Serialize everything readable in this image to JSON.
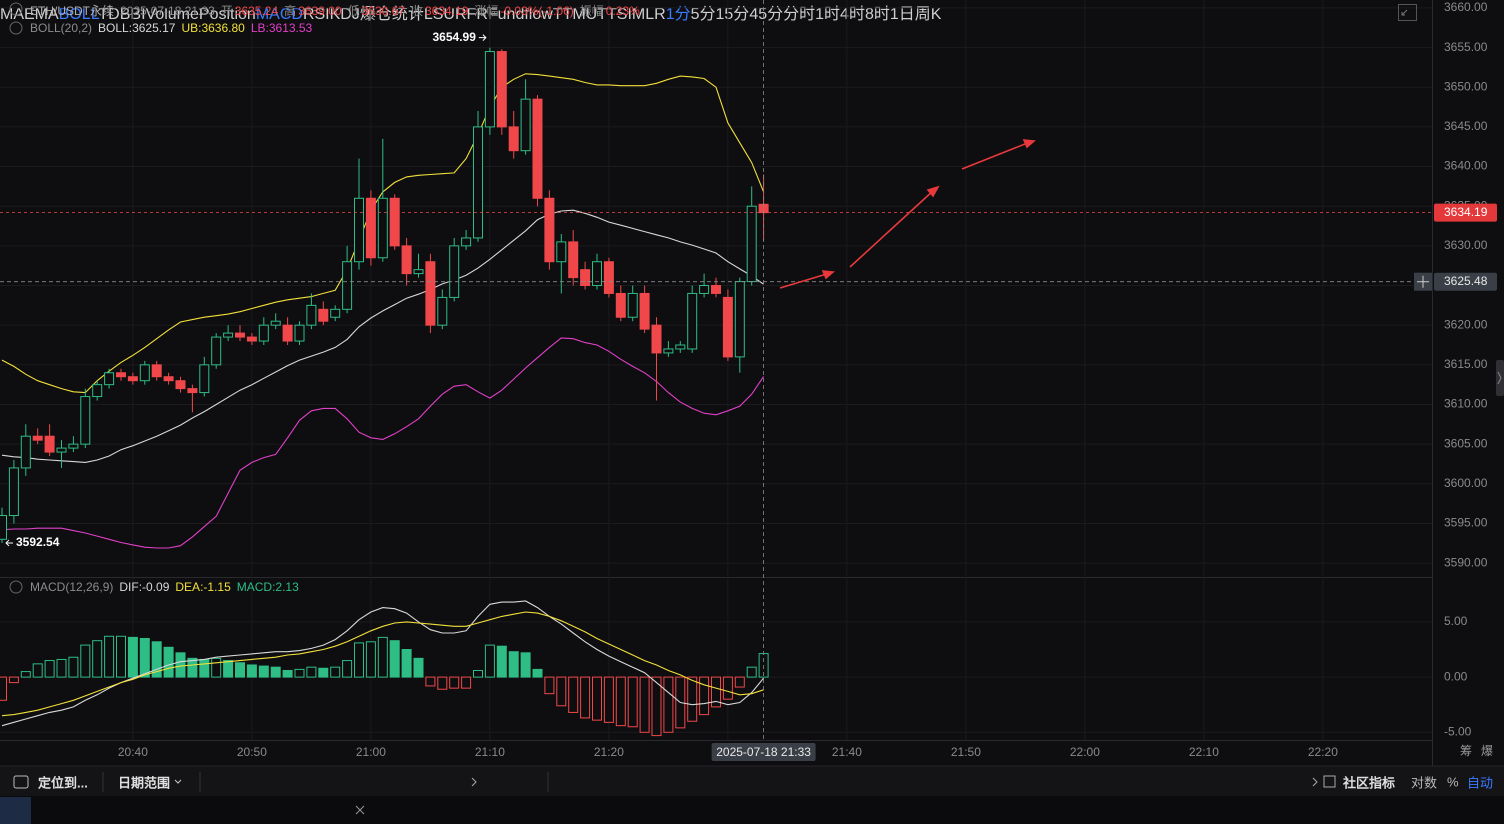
{
  "header": {
    "symbol": "ETH/USDT永续",
    "time": "2025-07-18 21:33",
    "items": [
      {
        "label": "开",
        "value": "3635.24"
      },
      {
        "label": "高",
        "value": "3639.00"
      },
      {
        "label": "低",
        "value": "3630.67"
      },
      {
        "label": "收",
        "value": "3634.19"
      },
      {
        "label": "涨幅",
        "value": "-0.03%(-1.06)"
      },
      {
        "label": "振幅",
        "value": "0.23%"
      }
    ]
  },
  "chart_data": [
    {
      "type": "candlestick",
      "indicator": "BOLL(20,2)",
      "legend": [
        "BOLL:3625.17",
        "UB:3636.80",
        "LB:3613.53"
      ],
      "x": [
        "20:29",
        "20:30",
        "20:31",
        "20:32",
        "20:33",
        "20:34",
        "20:35",
        "20:36",
        "20:37",
        "20:38",
        "20:39",
        "20:40",
        "20:41",
        "20:42",
        "20:43",
        "20:44",
        "20:45",
        "20:46",
        "20:47",
        "20:48",
        "20:49",
        "20:50",
        "20:51",
        "20:52",
        "20:53",
        "20:54",
        "20:55",
        "20:56",
        "20:57",
        "20:58",
        "20:59",
        "21:00",
        "21:01",
        "21:02",
        "21:03",
        "21:04",
        "21:05",
        "21:06",
        "21:07",
        "21:08",
        "21:09",
        "21:10",
        "21:11",
        "21:12",
        "21:13",
        "21:14",
        "21:15",
        "21:16",
        "21:17",
        "21:18",
        "21:19",
        "21:20",
        "21:21",
        "21:22",
        "21:23",
        "21:24",
        "21:25",
        "21:26",
        "21:27",
        "21:28",
        "21:29",
        "21:30",
        "21:31",
        "21:32",
        "21:33"
      ],
      "open": [
        3593,
        3596,
        3602,
        3606,
        3606,
        3604,
        3604.5,
        3605,
        3611,
        3612.5,
        3614,
        3613.5,
        3613,
        3615,
        3613.5,
        3613,
        3612,
        3611.5,
        3615,
        3618.5,
        3619,
        3618.5,
        3618,
        3620,
        3620,
        3618,
        3620,
        3622,
        3621,
        3622,
        3628,
        3636,
        3628.5,
        3636,
        3630,
        3626.5,
        3628,
        3620,
        3623.5,
        3630,
        3631,
        3645,
        3654.5,
        3645,
        3642,
        3648.5,
        3636,
        3628,
        3630.5,
        3627,
        3625,
        3628,
        3624,
        3621,
        3624,
        3620,
        3616.5,
        3617,
        3617,
        3624,
        3625,
        3623.5,
        3616,
        3625.5,
        3635.24
      ],
      "high": [
        3597,
        3603,
        3607.5,
        3607,
        3607.5,
        3605.5,
        3606,
        3612,
        3613,
        3614.5,
        3614.5,
        3614,
        3615.5,
        3615.5,
        3614,
        3613.5,
        3612.5,
        3616,
        3619,
        3620,
        3620,
        3619,
        3621,
        3621.5,
        3621,
        3620.5,
        3624,
        3623,
        3622.5,
        3630,
        3641,
        3637,
        3643.5,
        3636.5,
        3631,
        3629,
        3629,
        3624.5,
        3631,
        3632,
        3647,
        3654.99,
        3654.8,
        3647,
        3651,
        3649,
        3637,
        3631.5,
        3632,
        3628,
        3629,
        3628.5,
        3625,
        3625,
        3625,
        3621,
        3618,
        3618,
        3625,
        3626.5,
        3626,
        3624.5,
        3626,
        3637.5,
        3639
      ],
      "low": [
        3592.54,
        3595,
        3601,
        3605,
        3603.5,
        3602,
        3604,
        3604.5,
        3610.5,
        3612,
        3613,
        3612.5,
        3612.5,
        3613,
        3612.5,
        3611.5,
        3609,
        3611,
        3614.5,
        3618,
        3618,
        3617.5,
        3617.5,
        3619.5,
        3617.5,
        3617.5,
        3619.5,
        3620,
        3620.5,
        3621.5,
        3627,
        3627.5,
        3628,
        3629.5,
        3625,
        3626,
        3619,
        3619.5,
        3623,
        3629.5,
        3630.5,
        3644,
        3644,
        3641,
        3641.5,
        3635,
        3627,
        3624,
        3625,
        3624.5,
        3624.5,
        3623.5,
        3620.5,
        3620.5,
        3619,
        3610.5,
        3616,
        3616.5,
        3616.5,
        3623.5,
        3623.5,
        3615.5,
        3614,
        3625,
        3630.67
      ],
      "close": [
        3596,
        3602,
        3606,
        3605.5,
        3604,
        3604.5,
        3605,
        3611,
        3612.5,
        3614,
        3613.5,
        3613,
        3615,
        3613.5,
        3613,
        3612,
        3611.5,
        3615,
        3618.5,
        3619,
        3618.5,
        3618,
        3620,
        3620.5,
        3618,
        3620,
        3622.5,
        3620.5,
        3622,
        3628,
        3636,
        3628.5,
        3636,
        3630,
        3626.5,
        3627,
        3620,
        3623.5,
        3630,
        3631,
        3645,
        3654.5,
        3645,
        3642,
        3648.5,
        3636,
        3628,
        3630.5,
        3626,
        3625,
        3628,
        3624,
        3621,
        3624,
        3619.5,
        3616.5,
        3617,
        3617.5,
        3624,
        3625,
        3624,
        3616,
        3625.5,
        3635,
        3634.19
      ],
      "up_color": "#2ebd85",
      "down_color": "#f0484a",
      "series": [
        {
          "color": "#d8d8d8",
          "values": [
            3603.6,
            3603.4,
            3603.3,
            3603.1,
            3603,
            3602.9,
            3602.8,
            3602.7,
            3603,
            3603.5,
            3604.3,
            3604.8,
            3605.4,
            3606,
            3606.7,
            3607.4,
            3608.3,
            3609.1,
            3610,
            3610.9,
            3611.8,
            3612.5,
            3613.3,
            3614.1,
            3614.9,
            3615.6,
            3616.1,
            3616.6,
            3617.2,
            3618.2,
            3619.8,
            3620.9,
            3621.8,
            3622.6,
            3623.4,
            3623.9,
            3624.5,
            3625.2,
            3625.7,
            3626.3,
            3627.2,
            3628.3,
            3629.5,
            3630.7,
            3631.9,
            3633.3,
            3634,
            3634.4,
            3634.5,
            3634.1,
            3633.6,
            3633,
            3632.6,
            3632.2,
            3631.8,
            3631.4,
            3631,
            3630.5,
            3630.1,
            3629.6,
            3629.1,
            3628,
            3627.1,
            3626.2,
            3625.17
          ]
        },
        {
          "color": "#f2e03a",
          "values": [
            3615.6,
            3614.8,
            3613.8,
            3613,
            3612.5,
            3612,
            3611.6,
            3611.5,
            3613,
            3614.2,
            3615.3,
            3616.2,
            3617.2,
            3618.3,
            3619.4,
            3620.4,
            3620.7,
            3621,
            3621.2,
            3621.4,
            3621.7,
            3622.1,
            3622.5,
            3622.9,
            3623.2,
            3623.4,
            3623.6,
            3624,
            3624.4,
            3627,
            3630.7,
            3634.5,
            3636.8,
            3638,
            3638.7,
            3638.9,
            3639,
            3639.1,
            3639.2,
            3641,
            3644,
            3647.5,
            3650,
            3651,
            3651.7,
            3651.6,
            3651.4,
            3651.2,
            3651,
            3650.6,
            3650.3,
            3650.3,
            3650.2,
            3650.2,
            3650.2,
            3650.5,
            3651,
            3651.4,
            3651.3,
            3651.1,
            3650,
            3645.5,
            3643,
            3640.5,
            3636.8
          ]
        },
        {
          "color": "#e040c8",
          "values": [
            3594.2,
            3594.3,
            3594.3,
            3594.4,
            3594.4,
            3594.4,
            3594.1,
            3593.8,
            3593.4,
            3593,
            3592.6,
            3592.3,
            3592,
            3591.9,
            3591.9,
            3592.2,
            3593.3,
            3594.6,
            3595.9,
            3598.8,
            3601.7,
            3602.7,
            3603.3,
            3603.7,
            3605.8,
            3608,
            3609.2,
            3609.5,
            3609.5,
            3608.2,
            3606.5,
            3605.8,
            3605.6,
            3606.3,
            3607.2,
            3608.2,
            3609.8,
            3611.3,
            3612.3,
            3612.5,
            3611.6,
            3610.8,
            3611.8,
            3613.2,
            3614.6,
            3615.9,
            3617.2,
            3618.4,
            3618.3,
            3617.8,
            3617.5,
            3616.7,
            3615.7,
            3614.8,
            3614,
            3612.9,
            3611.5,
            3610.3,
            3609.5,
            3608.9,
            3608.7,
            3609.2,
            3609.8,
            3611.3,
            3613.53
          ]
        }
      ],
      "xlim": [
        "20:29",
        "22:29"
      ],
      "ylim": [
        3588.5,
        3661
      ],
      "yticks": [
        {
          "value": 3590,
          "label": "3590.00"
        },
        {
          "value": 3595,
          "label": "3595.00"
        },
        {
          "value": 3600,
          "label": "3600.00"
        },
        {
          "value": 3605,
          "label": "3605.00"
        },
        {
          "value": 3610,
          "label": "3610.00"
        },
        {
          "value": 3615,
          "label": "3615.00"
        },
        {
          "value": 3620,
          "label": "3620.00"
        },
        {
          "value": 3625,
          "label": "3625.00"
        },
        {
          "value": 3630,
          "label": "3630.00"
        },
        {
          "value": 3635,
          "label": "3635.00"
        },
        {
          "value": 3640,
          "label": "3640.00"
        },
        {
          "value": 3645,
          "label": "3645.00"
        },
        {
          "value": 3650,
          "label": "3650.00"
        },
        {
          "value": 3655,
          "label": "3655.00"
        },
        {
          "value": 3660,
          "label": "3660.00"
        }
      ],
      "grid": true,
      "crosshair": {
        "price": 3625.48,
        "time_label": "2025-07-18 21:33"
      }
    },
    {
      "type": "macd",
      "indicator": "MACD(12,26,9)",
      "legend": [
        "DIF:-0.09",
        "DEA:-1.15",
        "MACD:2.13"
      ],
      "x": [
        "20:29",
        "20:30",
        "20:31",
        "20:32",
        "20:33",
        "20:34",
        "20:35",
        "20:36",
        "20:37",
        "20:38",
        "20:39",
        "20:40",
        "20:41",
        "20:42",
        "20:43",
        "20:44",
        "20:45",
        "20:46",
        "20:47",
        "20:48",
        "20:49",
        "20:50",
        "20:51",
        "20:52",
        "20:53",
        "20:54",
        "20:55",
        "20:56",
        "20:57",
        "20:58",
        "20:59",
        "21:00",
        "21:01",
        "21:02",
        "21:03",
        "21:04",
        "21:05",
        "21:06",
        "21:07",
        "21:08",
        "21:09",
        "21:10",
        "21:11",
        "21:12",
        "21:13",
        "21:14",
        "21:15",
        "21:16",
        "21:17",
        "21:18",
        "21:19",
        "21:20",
        "21:21",
        "21:22",
        "21:23",
        "21:24",
        "21:25",
        "21:26",
        "21:27",
        "21:28",
        "21:29",
        "21:30",
        "21:31",
        "21:32",
        "21:33"
      ],
      "histogram": [
        -2.1,
        -0.5,
        0.5,
        1.2,
        1.5,
        1.6,
        1.8,
        2.9,
        3.3,
        3.7,
        3.7,
        3.6,
        3.5,
        3.2,
        2.7,
        2.2,
        1.7,
        1.6,
        1.7,
        1.5,
        1.3,
        1.1,
        1.0,
        0.9,
        0.6,
        0.7,
        0.9,
        0.8,
        0.9,
        1.5,
        3.1,
        3.2,
        3.6,
        3.3,
        2.5,
        1.7,
        -0.8,
        -1.1,
        -1.0,
        -1.0,
        0.6,
        2.9,
        2.8,
        2.3,
        2.2,
        0.7,
        -1.5,
        -2.6,
        -3.2,
        -3.7,
        -3.9,
        -4.1,
        -4.4,
        -4.5,
        -5.0,
        -5.3,
        -5.0,
        -4.6,
        -4.0,
        -3.4,
        -2.7,
        -2.0,
        -0.9,
        0.9,
        2.13
      ],
      "up_color": "#2ebd85",
      "down_color": "#f0484a",
      "series": [
        {
          "color": "#d8d8d8",
          "values": [
            -4.4,
            -4.1,
            -3.8,
            -3.5,
            -3.2,
            -3.0,
            -2.7,
            -2.1,
            -1.6,
            -1.0,
            -0.5,
            -0.1,
            0.3,
            0.7,
            1.1,
            1.4,
            1.5,
            1.6,
            1.8,
            1.9,
            2.0,
            2.1,
            2.2,
            2.3,
            2.3,
            2.4,
            2.6,
            2.9,
            3.4,
            4.2,
            5.2,
            5.9,
            6.3,
            6.2,
            5.8,
            5.0,
            4.3,
            4.0,
            4.0,
            4.2,
            5.5,
            6.6,
            6.8,
            6.8,
            6.9,
            6.3,
            5.5,
            4.8,
            4.0,
            3.2,
            2.5,
            1.9,
            1.4,
            0.9,
            0.4,
            -0.5,
            -1.4,
            -2.3,
            -2.5,
            -2.4,
            -2.2,
            -2.5,
            -2.3,
            -1.4,
            -0.09
          ]
        },
        {
          "color": "#f2e03a",
          "values": [
            -3.5,
            -3.4,
            -3.2,
            -3.0,
            -2.7,
            -2.4,
            -2.1,
            -1.7,
            -1.3,
            -0.9,
            -0.5,
            -0.2,
            0.2,
            0.5,
            0.8,
            1.0,
            1.1,
            1.2,
            1.3,
            1.4,
            1.5,
            1.6,
            1.7,
            1.8,
            2.0,
            2.1,
            2.3,
            2.5,
            2.8,
            3.2,
            3.7,
            4.2,
            4.6,
            4.9,
            5.0,
            4.9,
            4.8,
            4.7,
            4.6,
            4.6,
            4.9,
            5.2,
            5.5,
            5.7,
            5.9,
            5.8,
            5.5,
            5.1,
            4.6,
            4.1,
            3.5,
            3.0,
            2.5,
            2.0,
            1.5,
            1.1,
            0.6,
            0.2,
            -0.3,
            -0.7,
            -1.0,
            -1.3,
            -1.6,
            -1.5,
            -1.15
          ]
        }
      ],
      "xlim": [
        "20:29",
        "22:29"
      ],
      "ylim": [
        -5.7,
        8.8
      ],
      "yticks": [
        {
          "value": 5,
          "label": "5.00"
        },
        {
          "value": 0,
          "label": "0.00"
        },
        {
          "value": -5,
          "label": "-5.00"
        }
      ],
      "xticks": [
        "20:40",
        "20:50",
        "21:00",
        "21:10",
        "21:20",
        "21:30",
        "21:40",
        "21:50",
        "22:00",
        "22:10",
        "22:20"
      ]
    }
  ],
  "axis_corner": [
    "筹",
    "爆"
  ],
  "toolbar": {
    "location": "定位到...",
    "date_range": "日期范围",
    "main_indicators": [
      "MA",
      "EMA",
      "BOLL",
      "TD",
      "BBI"
    ],
    "main_active": 2,
    "sub_indicators": [
      "Volume",
      "Position",
      "MACD",
      "RSI",
      "KDJ",
      "爆仓统计",
      "LSUR",
      "FR",
      "Fundflow",
      "TTMU",
      "TTSI",
      "MLR"
    ],
    "sub_active": 2,
    "community": "社区指标",
    "log": "对数",
    "percent": "%",
    "auto": "自动"
  },
  "intervals": {
    "items": [
      "1分",
      "5分",
      "15分",
      "45分",
      "分时",
      "1时",
      "4时",
      "8时",
      "1日",
      "周K"
    ],
    "active": 0
  }
}
